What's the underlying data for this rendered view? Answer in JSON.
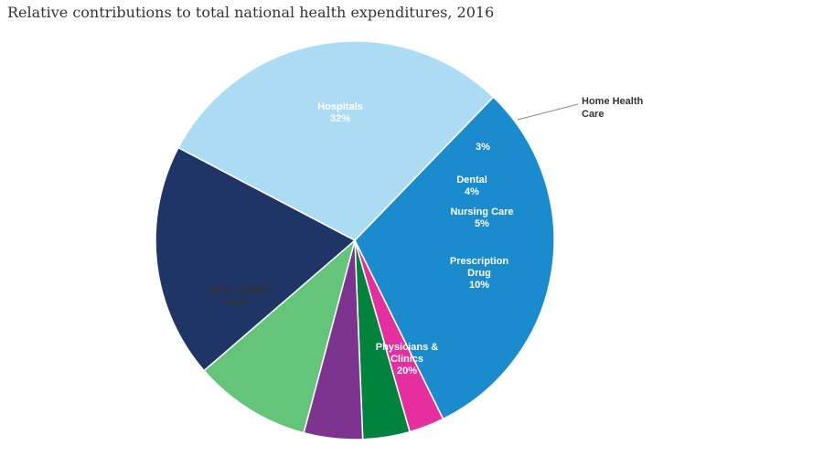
{
  "chart_data": {
    "type": "pie",
    "title": "Relative contributions to total national health expenditures, 2016",
    "slices": [
      {
        "label": "Hospitals",
        "value": 32,
        "display": "32%",
        "color": "#1a8bcc",
        "text_color": "#ffffff"
      },
      {
        "label": "Home Health Care",
        "value": 3,
        "display": "3%",
        "color": "#e52f9f",
        "text_color": "#ffffff"
      },
      {
        "label": "Dental",
        "value": 4,
        "display": "4%",
        "color": "#00843d",
        "text_color": "#ffffff"
      },
      {
        "label": "Nursing Care",
        "value": 5,
        "display": "5%",
        "color": "#7c348f",
        "text_color": "#ffffff"
      },
      {
        "label": "Prescription Drug",
        "value": 10,
        "display": "10%",
        "color": "#63c47a",
        "text_color": "#ffffff"
      },
      {
        "label": "Physicians & Clinics",
        "value": 20,
        "display": "20%",
        "color": "#1f3566",
        "text_color": "#ffffff"
      },
      {
        "label": "Other Health",
        "value": 31,
        "display": "31%",
        "color": "#acdcf3",
        "text_color": "#333333"
      }
    ]
  }
}
